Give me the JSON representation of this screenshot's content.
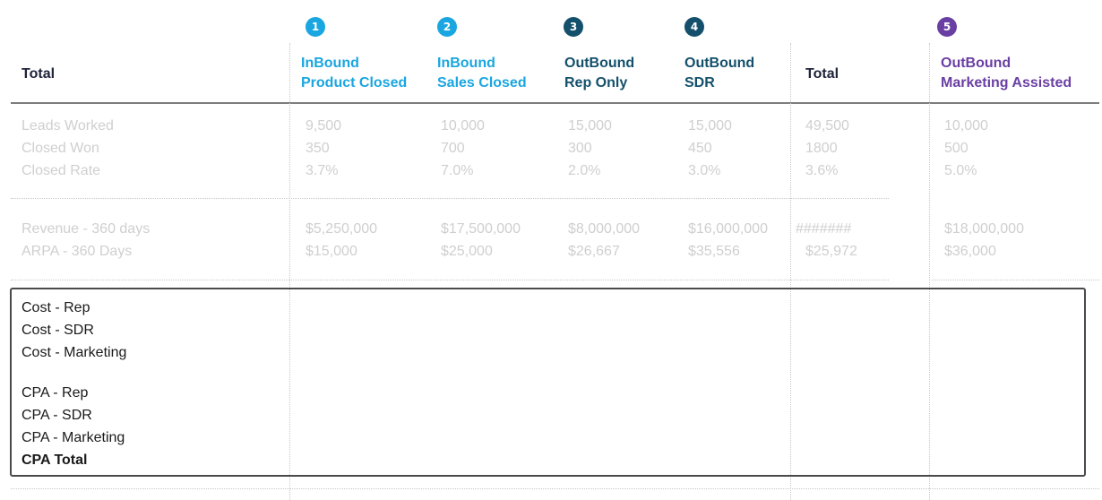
{
  "columns": [
    {
      "badge": "",
      "title_line1": "Total",
      "title_line2": ""
    },
    {
      "badge": "1",
      "title_line1": "InBound",
      "title_line2": "Product Closed"
    },
    {
      "badge": "2",
      "title_line1": "InBound",
      "title_line2": "Sales Closed"
    },
    {
      "badge": "3",
      "title_line1": "OutBound",
      "title_line2": "Rep Only"
    },
    {
      "badge": "4",
      "title_line1": "OutBound",
      "title_line2": "SDR"
    },
    {
      "badge": "",
      "title_line1": "Total",
      "title_line2": ""
    },
    {
      "badge": "5",
      "title_line1": "OutBound",
      "title_line2": "Marketing Assisted"
    }
  ],
  "section1": {
    "labels": [
      "Leads Worked",
      "Closed Won",
      "Closed Rate"
    ],
    "cols": [
      [
        "9,500",
        "350",
        "3.7%"
      ],
      [
        "10,000",
        "700",
        "7.0%"
      ],
      [
        "15,000",
        "300",
        "2.0%"
      ],
      [
        "15,000",
        "450",
        "3.0%"
      ],
      [
        "49,500",
        "1800",
        "3.6%"
      ],
      [
        "10,000",
        "500",
        "5.0%"
      ]
    ]
  },
  "section2": {
    "labels": [
      "Revenue - 360 days",
      "ARPA - 360 Days"
    ],
    "cols": [
      [
        "$5,250,000",
        "$15,000"
      ],
      [
        "$17,500,000",
        "$25,000"
      ],
      [
        "$8,000,000",
        "$26,667"
      ],
      [
        "$16,000,000",
        "$35,556"
      ],
      [
        "#######",
        "$25,972"
      ],
      [
        "$18,000,000",
        "$36,000"
      ]
    ]
  },
  "cost": {
    "labels": [
      "Cost - Rep",
      "Cost - SDR",
      "Cost - Marketing"
    ],
    "cpa_labels": [
      "CPA - Rep",
      "CPA - SDR",
      "CPA - Marketing",
      "CPA Total"
    ]
  },
  "colors": {
    "inbound": "#1aa6e0",
    "outbound": "#14506c",
    "marketing": "#6a3fa3",
    "header_total": "#20243a",
    "muted_text": "#cfcfcf"
  }
}
